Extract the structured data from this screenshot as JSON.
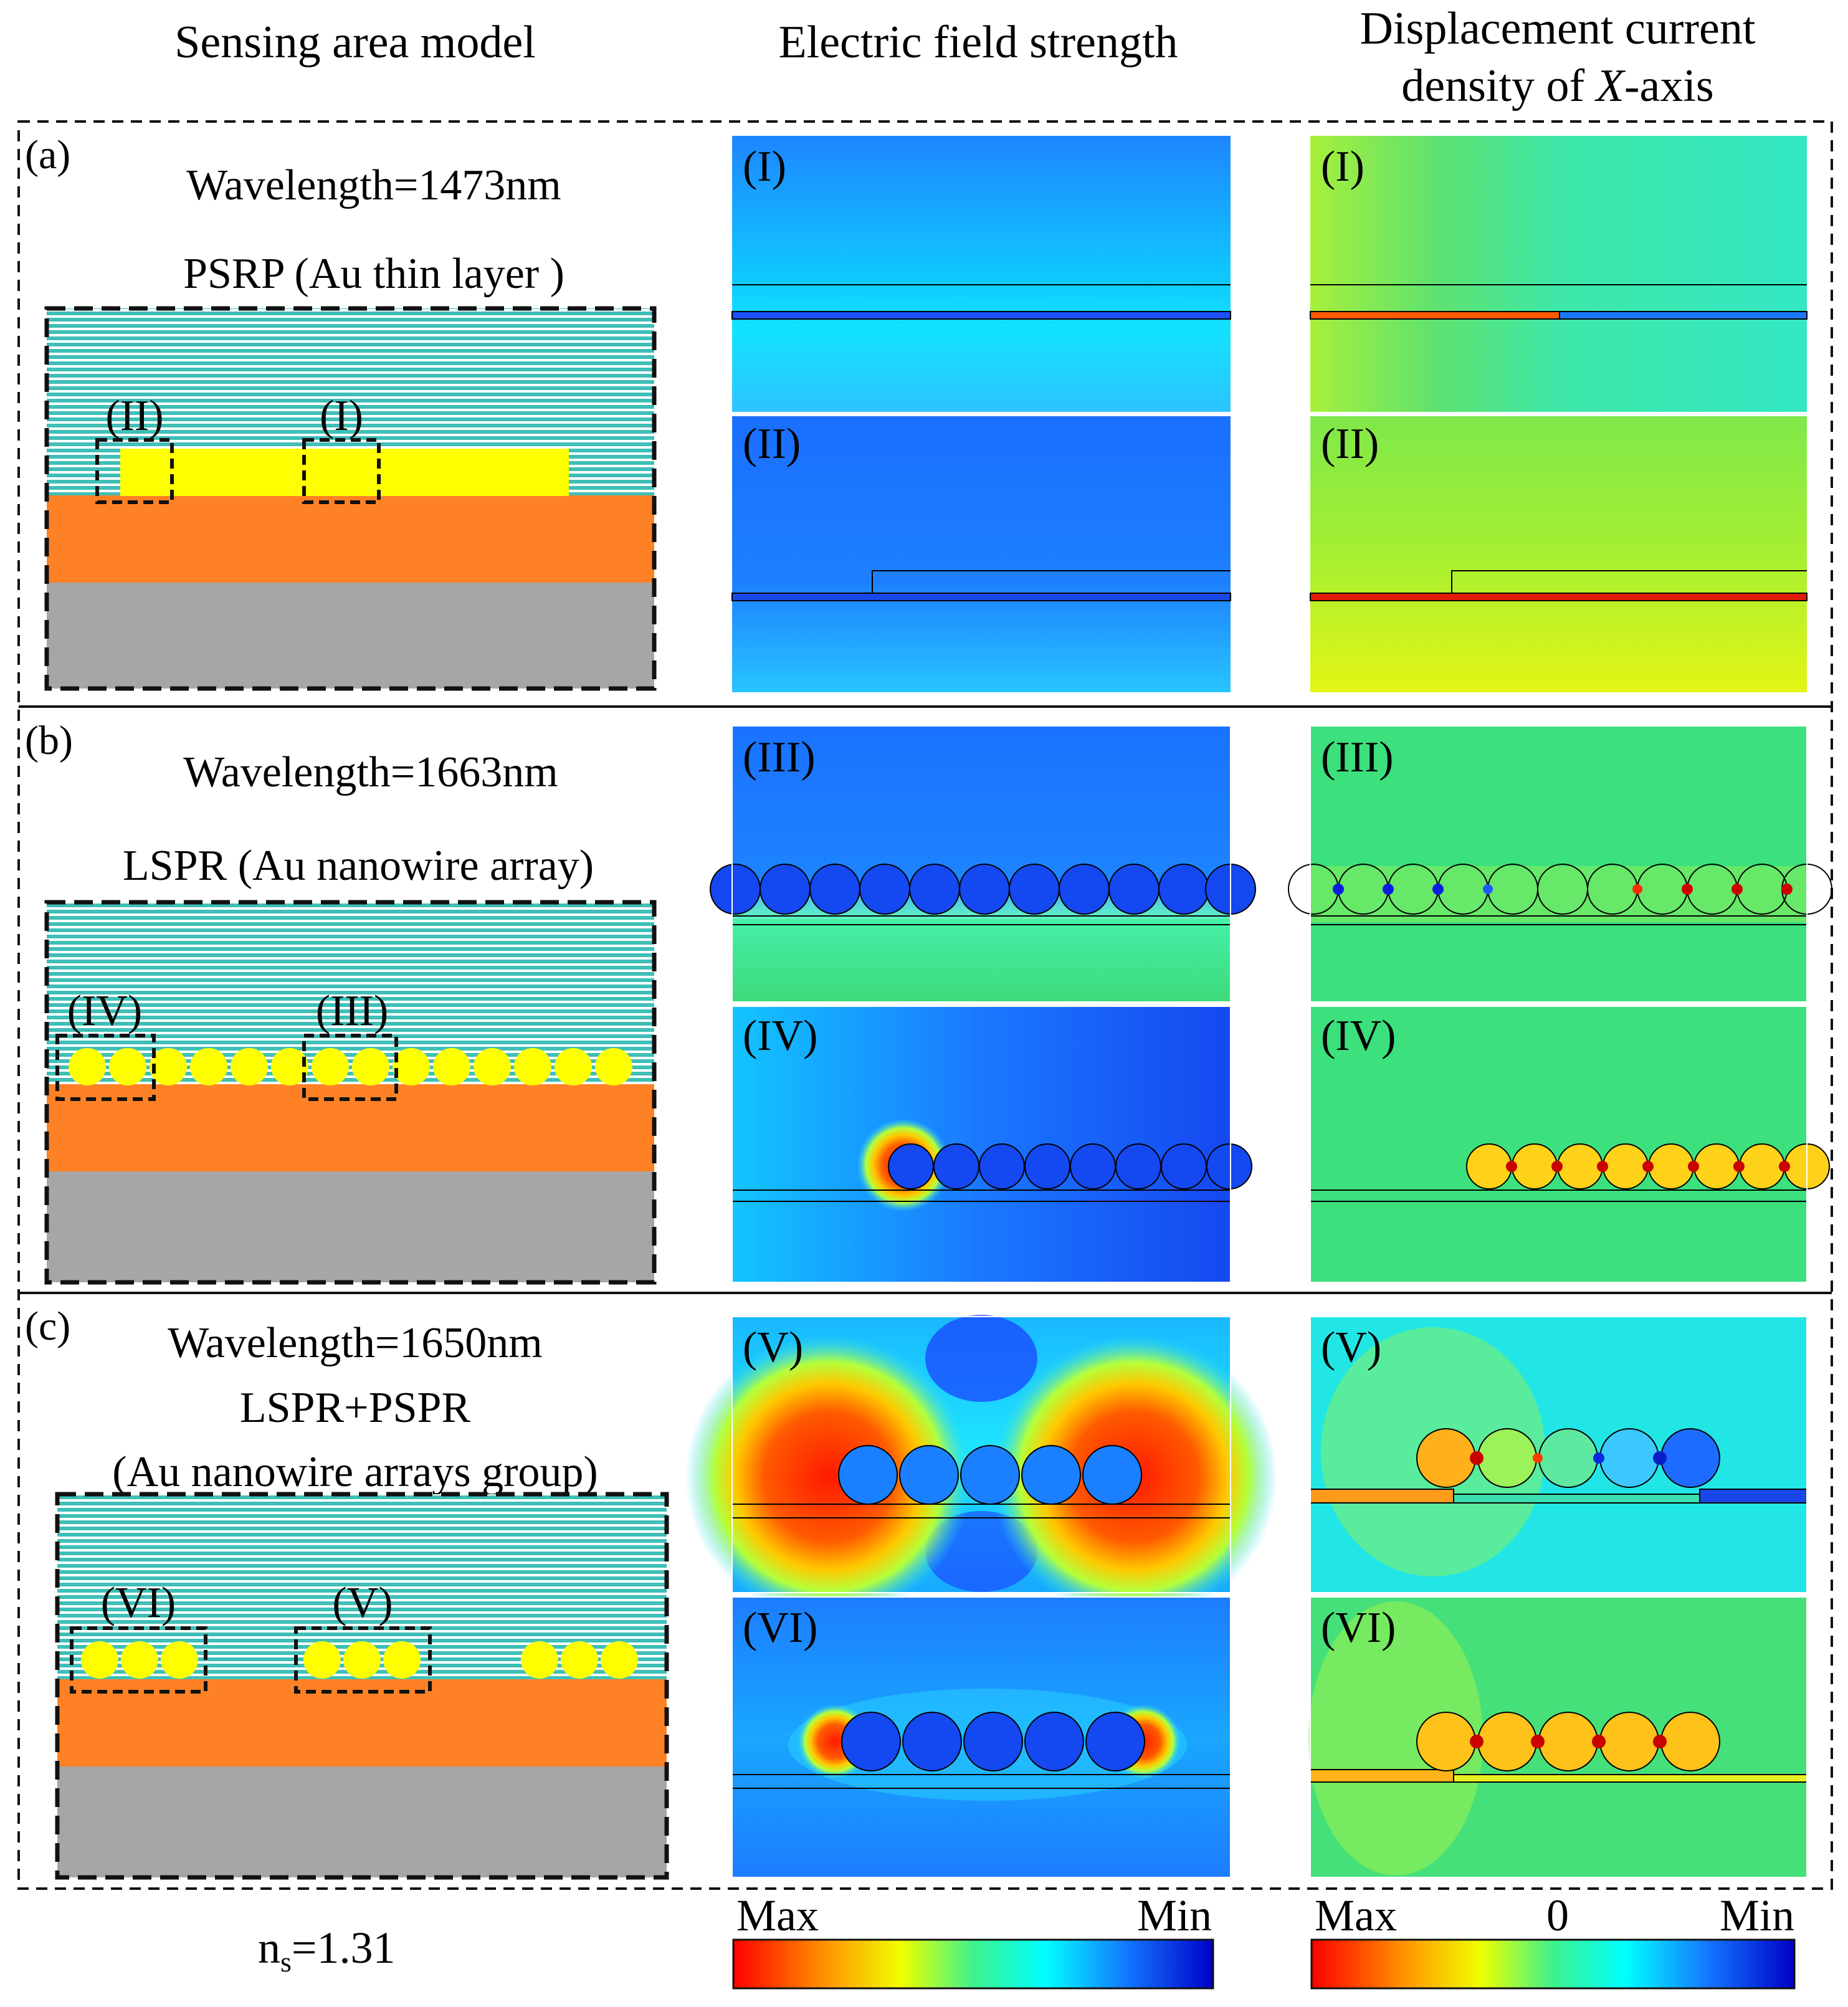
{
  "headers": {
    "col1": "Sensing area model",
    "col2": "Electric field strength",
    "col3_line1": "Displacement current",
    "col3_line2_pre": "density of ",
    "col3_line2_var": "X",
    "col3_line2_post": "-axis"
  },
  "rows": [
    {
      "label": "(a)",
      "wavelength": "Wavelength=1473nm",
      "mode_line1": "PSRP (Au thin layer )",
      "mode_line2": "",
      "boxes": [
        "(II)",
        "(I)"
      ],
      "panels": [
        "(I)",
        "(II)"
      ]
    },
    {
      "label": "(b)",
      "wavelength": "Wavelength=1663nm",
      "mode_line1": "LSPR (Au nanowire array)",
      "mode_line2": "",
      "boxes": [
        "(IV)",
        "(III)"
      ],
      "panels": [
        "(III)",
        "(IV)"
      ]
    },
    {
      "label": "(c)",
      "wavelength": "Wavelength=1650nm",
      "mode_line1": "LSPR+PSPR",
      "mode_line2": "(Au nanowire  arrays group)",
      "boxes": [
        "(VI)",
        "(V)"
      ],
      "panels": [
        "(V)",
        "(VI)"
      ]
    }
  ],
  "colorbars": {
    "efield": {
      "max": "Max",
      "min": "Min"
    },
    "current": {
      "max": "Max",
      "zero": "0",
      "min": "Min"
    }
  },
  "ns_label": {
    "base": "n",
    "sub": "s",
    "value": "=1.31"
  },
  "colors": {
    "water": "#4fc8c0",
    "gold": "#ffff00",
    "substrate": "#ff8125",
    "base": "#a6a6a6",
    "efield_bg": "#1a74ff",
    "current_bg": "#33e07a"
  }
}
